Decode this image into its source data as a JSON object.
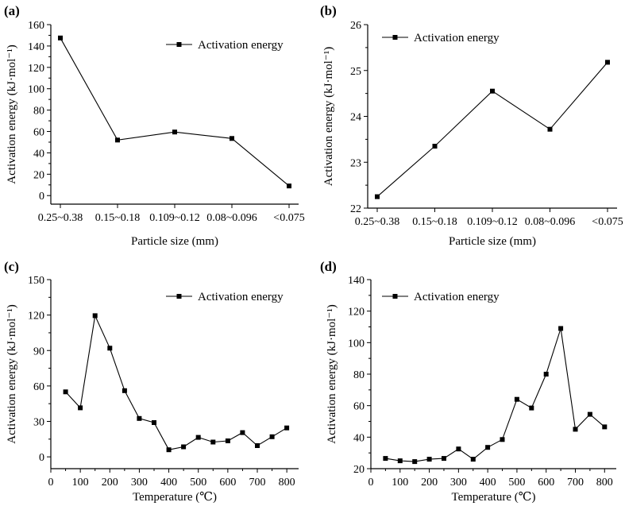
{
  "chart_data": [
    {
      "id": "a",
      "panel_label": "(a)",
      "type": "line",
      "categories": [
        "0.25~0.38",
        "0.15~0.18",
        "0.109~0.12",
        "0.08~0.096",
        "<0.075"
      ],
      "series": [
        {
          "name": "Activation energy",
          "values": [
            147.5,
            52,
            59.5,
            53.5,
            9
          ]
        }
      ],
      "xlabel": "Particle size (mm)",
      "ylabel": "Activation energy (kJ·mol⁻¹)",
      "ylim": [
        -8,
        160
      ],
      "yticks": [
        0,
        20,
        40,
        60,
        80,
        100,
        120,
        140,
        160
      ],
      "legend_position": "top-right"
    },
    {
      "id": "b",
      "panel_label": "(b)",
      "type": "line",
      "categories": [
        "0.25~0.38",
        "0.15~0.18",
        "0.109~0.12",
        "0.08~0.096",
        "<0.075"
      ],
      "series": [
        {
          "name": "Activation energy",
          "values": [
            22.25,
            23.35,
            24.55,
            23.72,
            25.18
          ]
        }
      ],
      "xlabel": "Particle size (mm)",
      "ylabel": "Activation energy (kJ·mol⁻¹)",
      "ylim": [
        22,
        26
      ],
      "yticks": [
        22,
        23,
        24,
        25,
        26
      ],
      "legend_position": "top-left"
    },
    {
      "id": "c",
      "panel_label": "(c)",
      "type": "line",
      "x": [
        50,
        100,
        150,
        200,
        250,
        300,
        350,
        400,
        450,
        500,
        550,
        600,
        650,
        700,
        750,
        800
      ],
      "series": [
        {
          "name": "Activation energy",
          "values": [
            55,
            41.5,
            119.5,
            92,
            56,
            32.5,
            29,
            6,
            8.5,
            16.5,
            12.5,
            13.5,
            20.5,
            9.5,
            17,
            24.5
          ]
        }
      ],
      "xlabel": "Temperature (℃)",
      "ylabel": "Activation energy (kJ·mol⁻¹)",
      "xlim": [
        0,
        840
      ],
      "xticks": [
        0,
        100,
        200,
        300,
        400,
        500,
        600,
        700,
        800
      ],
      "ylim": [
        -10,
        150
      ],
      "yticks": [
        0,
        30,
        60,
        90,
        120,
        150
      ],
      "legend_position": "top-right"
    },
    {
      "id": "d",
      "panel_label": "(d)",
      "type": "line",
      "x": [
        50,
        100,
        150,
        200,
        250,
        300,
        350,
        400,
        450,
        500,
        550,
        600,
        650,
        700,
        750,
        800
      ],
      "series": [
        {
          "name": "Activation energy",
          "values": [
            26.5,
            25,
            24.5,
            26,
            26.5,
            32.5,
            26,
            33.5,
            38.5,
            64,
            58.5,
            80,
            109,
            45,
            54.5,
            46.5
          ]
        }
      ],
      "xlabel": "Temperature (℃)",
      "ylabel": "Activation energy (kJ·mol⁻¹)",
      "xlim": [
        0,
        840
      ],
      "xticks": [
        0,
        100,
        200,
        300,
        400,
        500,
        600,
        700,
        800
      ],
      "ylim": [
        20,
        140
      ],
      "yticks": [
        20,
        40,
        60,
        80,
        100,
        120,
        140
      ],
      "legend_position": "top-left"
    }
  ]
}
